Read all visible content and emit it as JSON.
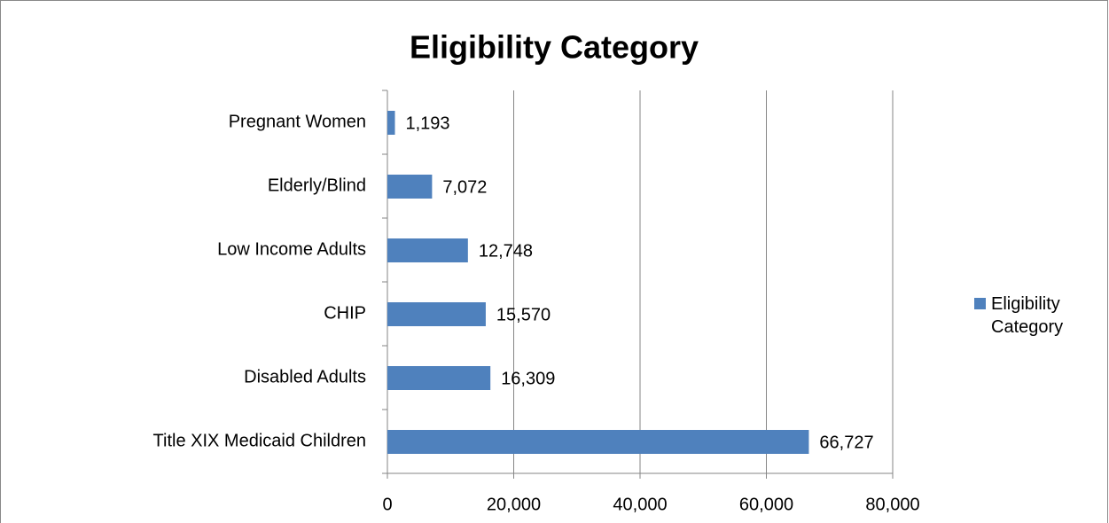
{
  "chart_data": {
    "type": "barh",
    "title": "Eligibility Category",
    "categories": [
      "Pregnant Women",
      "Elderly/Blind",
      "Low Income Adults",
      "CHIP",
      "Disabled Adults",
      "Title XIX Medicaid Children"
    ],
    "series": [
      {
        "name": "Eligibility Category",
        "color": "#4f81bd",
        "values": [
          1193,
          7072,
          12748,
          15570,
          16309,
          66727
        ],
        "value_labels": [
          "1,193",
          "7,072",
          "12,748",
          "15,570",
          "16,309",
          "66,727"
        ]
      }
    ],
    "xlim": [
      0,
      80000
    ],
    "xticks": [
      0,
      {
        "value": 20000,
        "label": "20,000"
      },
      {
        "value": 40000,
        "label": "40,000"
      },
      {
        "value": 60000,
        "label": "60,000"
      },
      {
        "value": 80000,
        "label": "80,000"
      }
    ],
    "grid": true,
    "legend": "right"
  }
}
